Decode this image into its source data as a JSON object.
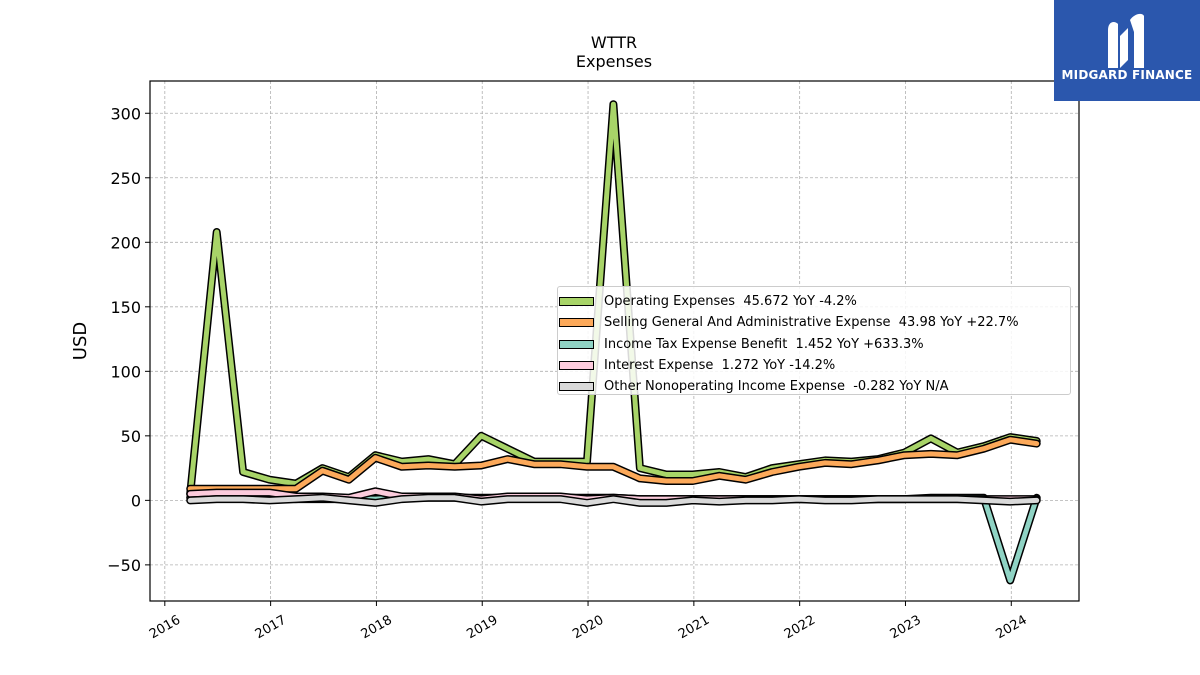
{
  "chart_data": {
    "type": "line",
    "title": "WTTR",
    "subtitle": "Expenses",
    "ylabel": "USD",
    "xlabel": "",
    "ylim": [
      -78,
      325
    ],
    "xlim": [
      2015.86,
      2024.64
    ],
    "yticks": [
      -50,
      0,
      50,
      100,
      150,
      200,
      250,
      300
    ],
    "ytick_labels": [
      "−50",
      "0",
      "50",
      "100",
      "150",
      "200",
      "250",
      "300"
    ],
    "xticks": [
      2016,
      2017,
      2018,
      2019,
      2020,
      2021,
      2022,
      2023,
      2024
    ],
    "xtick_labels": [
      "2016",
      "2017",
      "2018",
      "2019",
      "2020",
      "2021",
      "2022",
      "2023",
      "2024"
    ],
    "grid": true,
    "legend_position": "center-right",
    "x": [
      2016.24,
      2016.49,
      2016.74,
      2016.99,
      2017.24,
      2017.49,
      2017.74,
      2017.99,
      2018.24,
      2018.49,
      2018.74,
      2018.99,
      2019.24,
      2019.49,
      2019.74,
      2019.99,
      2020.24,
      2020.49,
      2020.74,
      2020.99,
      2021.24,
      2021.49,
      2021.74,
      2021.99,
      2022.24,
      2022.49,
      2022.74,
      2022.99,
      2023.24,
      2023.49,
      2023.74,
      2023.99,
      2024.24
    ],
    "series": [
      {
        "name": "Operating Expenses",
        "legend_label": "Operating Expenses  45.672 YoY -4.2%",
        "color": "#a8d468",
        "values": [
          5,
          208,
          22,
          16,
          13,
          25,
          18,
          35,
          30,
          32,
          28,
          50,
          40,
          30,
          30,
          30,
          307,
          25,
          20,
          20,
          22,
          18,
          25,
          28,
          31,
          30,
          32,
          37,
          48,
          37,
          42,
          49,
          46
        ]
      },
      {
        "name": "Selling General And Administrative Expense",
        "legend_label": "Selling General And Administrative Expense  43.98 YoY +22.7%",
        "color": "#fca95a",
        "values": [
          9,
          9,
          9,
          9,
          9,
          23,
          16,
          33,
          26,
          27,
          26,
          27,
          32,
          28,
          28,
          26,
          26,
          17,
          15,
          15,
          19,
          16,
          22,
          26,
          29,
          28,
          31,
          35,
          36,
          35,
          40,
          47,
          44
        ]
      },
      {
        "name": "Income Tax Expense Benefit",
        "legend_label": "Income Tax Expense Benefit  1.452 YoY +633.3%",
        "color": "#8fd3c4",
        "values": [
          2,
          2,
          2,
          2,
          1,
          1,
          1,
          1,
          2,
          2,
          2,
          2,
          2,
          2,
          2,
          2,
          2,
          1,
          1,
          1,
          1,
          1,
          1,
          1,
          1,
          1,
          1,
          1,
          2,
          2,
          2,
          -62,
          2
        ]
      },
      {
        "name": "Interest Expense",
        "legend_label": "Interest Expense  1.272 YoY -14.2%",
        "color": "#fccbdc",
        "values": [
          5,
          6,
          6,
          6,
          3,
          3,
          2,
          7,
          3,
          3,
          3,
          1,
          3,
          3,
          3,
          1,
          2,
          1,
          1,
          1,
          1,
          1,
          1,
          1,
          1,
          1,
          1,
          1,
          1,
          1,
          1,
          1,
          1
        ]
      },
      {
        "name": "Other Nonoperating Income Expense",
        "legend_label": "Other Nonoperating Income Expense  -0.282 YoY N/A",
        "color": "#d9d9d9",
        "values": [
          0,
          1,
          1,
          0,
          1,
          2,
          0,
          -2,
          1,
          2,
          2,
          -1,
          1,
          1,
          1,
          -2,
          1,
          -2,
          -2,
          0,
          -1,
          0,
          0,
          1,
          0,
          0,
          1,
          1,
          1,
          1,
          0,
          -1,
          0
        ]
      }
    ]
  },
  "brand": {
    "name": "MIDGARD FINANCE",
    "background": "#2b57ad"
  }
}
